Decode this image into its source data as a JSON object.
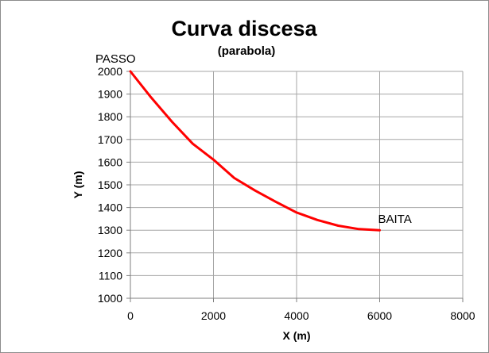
{
  "chart_data": {
    "type": "line",
    "title": "Curva discesa",
    "subtitle": "(parabola)",
    "xlabel": "X (m)",
    "ylabel": "Y (m)",
    "xlim": [
      0,
      8000
    ],
    "ylim": [
      1000,
      2000
    ],
    "x_ticks": [
      0,
      2000,
      4000,
      6000,
      8000
    ],
    "y_ticks": [
      1000,
      1100,
      1200,
      1300,
      1400,
      1500,
      1600,
      1700,
      1800,
      1900,
      2000
    ],
    "grid": true,
    "legend": "none",
    "series": [
      {
        "color": "#ff0000",
        "x": [
          0,
          500,
          1000,
          1500,
          2000,
          2500,
          3000,
          3500,
          4000,
          4500,
          5000,
          5500,
          6000
        ],
        "y": [
          2000,
          1885,
          1778,
          1681,
          1611,
          1530,
          1475,
          1425,
          1378,
          1345,
          1320,
          1305,
          1300
        ]
      }
    ],
    "annotations": [
      {
        "text": "PASSO",
        "x": 0,
        "y": 2000
      },
      {
        "text": "BAITA",
        "x": 6000,
        "y": 1300
      }
    ]
  }
}
